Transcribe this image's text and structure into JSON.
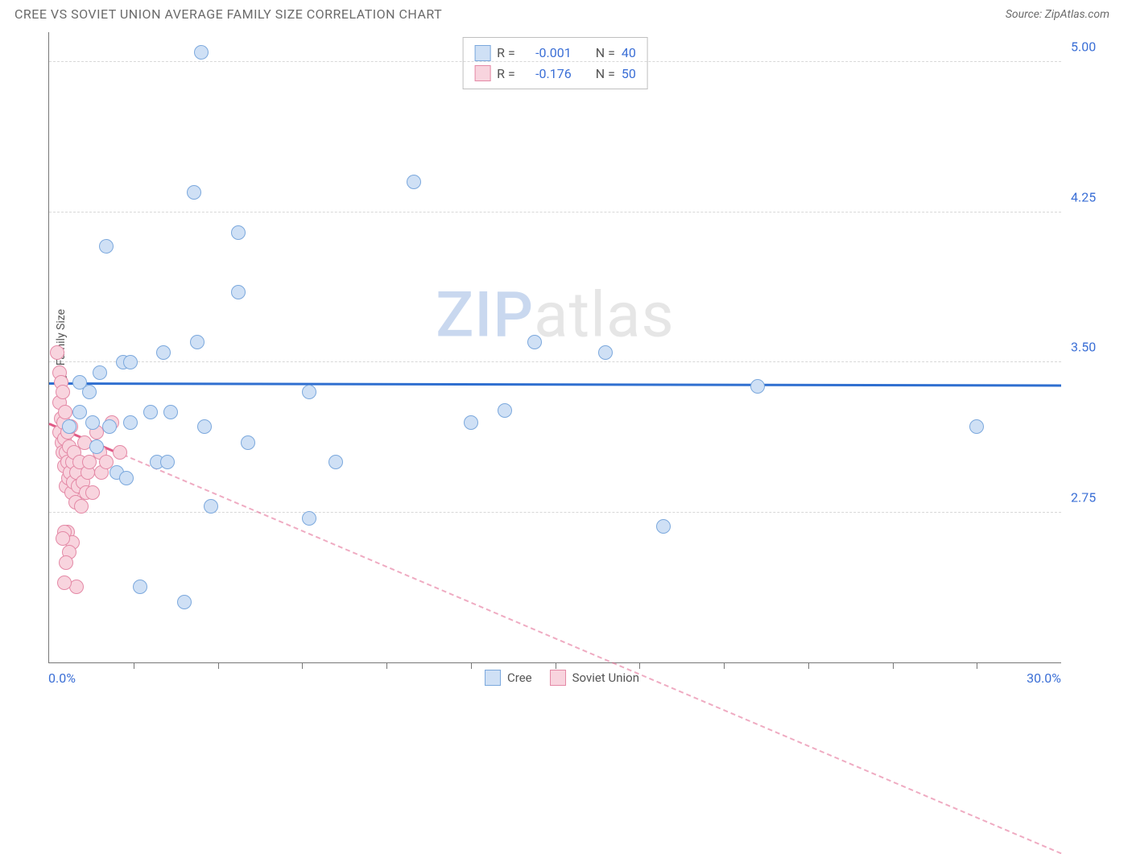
{
  "header": {
    "title": "CREE VS SOVIET UNION AVERAGE FAMILY SIZE CORRELATION CHART",
    "source": "Source: ZipAtlas.com"
  },
  "watermark": {
    "a": "ZIP",
    "b": "atlas"
  },
  "chart": {
    "type": "scatter",
    "y_axis_label": "Average Family Size",
    "xlim": [
      0,
      30
    ],
    "ylim": [
      2.0,
      5.15
    ],
    "x_label_min": "0.0%",
    "x_label_max": "30.0%",
    "y_ticks": [
      2.75,
      3.5,
      4.25,
      5.0
    ],
    "y_tick_labels": [
      "2.75",
      "3.50",
      "4.25",
      "5.00"
    ],
    "x_ticks": [
      2.5,
      5,
      7.5,
      10,
      12.5,
      15,
      17.5,
      20,
      22.5,
      25,
      27.5
    ],
    "grid_color": "#d8d8d8",
    "marker_radius": 9,
    "series": [
      {
        "name": "Cree",
        "color_fill": "#cfe0f5",
        "color_stroke": "#7ba8dd",
        "points": [
          [
            1.7,
            4.08
          ],
          [
            4.5,
            5.05
          ],
          [
            1.5,
            3.45
          ],
          [
            2.2,
            3.5
          ],
          [
            3.4,
            3.55
          ],
          [
            4.3,
            4.35
          ],
          [
            4.4,
            3.6
          ],
          [
            4.6,
            3.18
          ],
          [
            5.6,
            4.15
          ],
          [
            5.6,
            3.85
          ],
          [
            5.9,
            3.1
          ],
          [
            1.3,
            3.2
          ],
          [
            8.5,
            3.0
          ],
          [
            3.0,
            3.25
          ],
          [
            3.2,
            3.0
          ],
          [
            3.5,
            3.0
          ],
          [
            3.6,
            3.25
          ],
          [
            2.7,
            2.38
          ],
          [
            4.0,
            2.3
          ],
          [
            12.5,
            3.2
          ],
          [
            7.7,
            3.35
          ],
          [
            7.7,
            2.72
          ],
          [
            2.0,
            2.95
          ],
          [
            2.4,
            3.5
          ],
          [
            0.9,
            3.4
          ],
          [
            0.9,
            3.25
          ],
          [
            0.6,
            3.18
          ],
          [
            1.2,
            3.35
          ],
          [
            1.4,
            3.08
          ],
          [
            1.8,
            3.18
          ],
          [
            2.3,
            2.92
          ],
          [
            2.4,
            3.2
          ],
          [
            10.8,
            4.4
          ],
          [
            13.5,
            3.26
          ],
          [
            14.4,
            3.6
          ],
          [
            16.5,
            3.55
          ],
          [
            18.2,
            2.68
          ],
          [
            4.8,
            2.78
          ],
          [
            27.5,
            3.18
          ],
          [
            21.0,
            3.38
          ]
        ],
        "trend": {
          "y_at_xmin": 3.4,
          "y_at_xmax": 3.39,
          "color": "#2f6fd0"
        }
      },
      {
        "name": "Soviet Union",
        "color_fill": "#f8d4de",
        "color_stroke": "#e489a6",
        "points": [
          [
            0.25,
            3.55
          ],
          [
            0.3,
            3.45
          ],
          [
            0.3,
            3.3
          ],
          [
            0.3,
            3.15
          ],
          [
            0.35,
            3.4
          ],
          [
            0.35,
            3.22
          ],
          [
            0.38,
            3.1
          ],
          [
            0.4,
            3.35
          ],
          [
            0.4,
            3.05
          ],
          [
            0.42,
            3.2
          ],
          [
            0.45,
            3.12
          ],
          [
            0.45,
            2.98
          ],
          [
            0.48,
            3.25
          ],
          [
            0.5,
            3.05
          ],
          [
            0.5,
            2.88
          ],
          [
            0.55,
            3.15
          ],
          [
            0.55,
            3.0
          ],
          [
            0.58,
            2.92
          ],
          [
            0.6,
            3.08
          ],
          [
            0.62,
            2.95
          ],
          [
            0.65,
            3.18
          ],
          [
            0.68,
            2.85
          ],
          [
            0.7,
            3.0
          ],
          [
            0.72,
            2.9
          ],
          [
            0.75,
            3.05
          ],
          [
            0.78,
            2.8
          ],
          [
            0.8,
            2.95
          ],
          [
            0.85,
            2.88
          ],
          [
            0.9,
            3.0
          ],
          [
            0.95,
            2.78
          ],
          [
            1.0,
            2.9
          ],
          [
            1.05,
            3.1
          ],
          [
            1.1,
            2.85
          ],
          [
            1.15,
            2.95
          ],
          [
            1.2,
            3.0
          ],
          [
            1.3,
            2.85
          ],
          [
            1.4,
            3.15
          ],
          [
            1.5,
            3.05
          ],
          [
            1.55,
            2.95
          ],
          [
            1.7,
            3.0
          ],
          [
            0.55,
            2.65
          ],
          [
            0.7,
            2.6
          ],
          [
            0.6,
            2.55
          ],
          [
            0.5,
            2.5
          ],
          [
            0.45,
            2.65
          ],
          [
            0.8,
            2.38
          ],
          [
            0.4,
            2.62
          ],
          [
            0.45,
            2.4
          ],
          [
            1.85,
            3.2
          ],
          [
            2.1,
            3.05
          ]
        ],
        "trend": {
          "y_at_xmin": 3.2,
          "y_at_xmax": 1.05,
          "color": "#e05a86",
          "dash_after_x": 2.2
        }
      }
    ],
    "stats_legend": [
      {
        "swatch_fill": "#cfe0f5",
        "swatch_stroke": "#7ba8dd",
        "r_label": "R = ",
        "r_value": "-0.001",
        "n_label": "N = ",
        "n_value": "40"
      },
      {
        "swatch_fill": "#f8d4de",
        "swatch_stroke": "#e489a6",
        "r_label": "R = ",
        "r_value": "-0.176",
        "n_label": "N = ",
        "n_value": "50"
      }
    ],
    "bottom_legend": [
      {
        "swatch_fill": "#cfe0f5",
        "swatch_stroke": "#7ba8dd",
        "label": "Cree"
      },
      {
        "swatch_fill": "#f8d4de",
        "swatch_stroke": "#e489a6",
        "label": "Soviet Union"
      }
    ]
  }
}
